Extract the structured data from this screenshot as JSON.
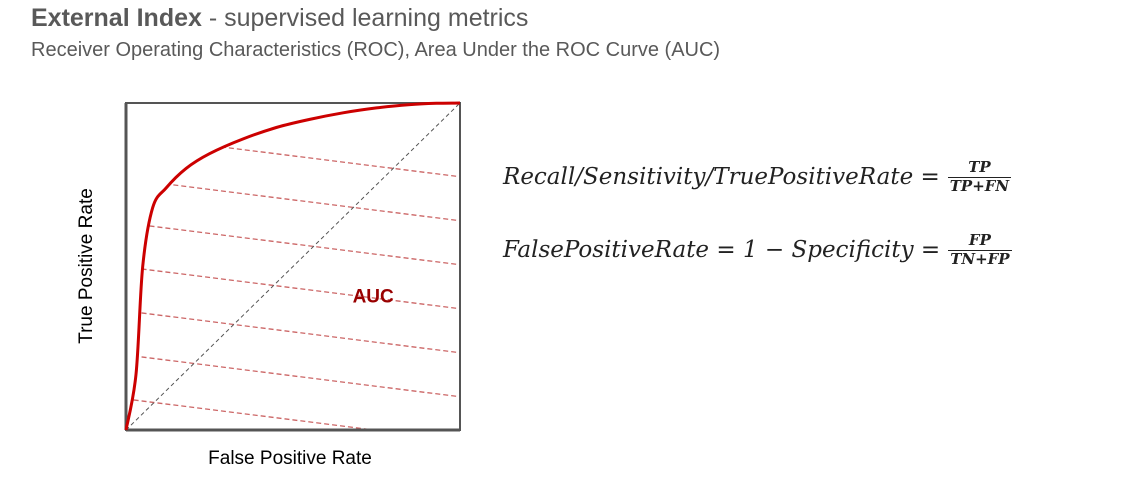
{
  "header": {
    "title_bold": "External Index",
    "title_rest": " - supervised learning metrics",
    "subtitle": "Receiver Operating Characteristics (ROC), Area Under the ROC Curve (AUC)"
  },
  "formulas": [
    {
      "lhs": "Recall/Sensitivity/TruePositiveRate =",
      "num": "TP",
      "den": "TP+FN"
    },
    {
      "lhs": "FalsePositiveRate = 1 − Specificity =",
      "num": "FP",
      "den": "TN+FP"
    }
  ],
  "chart_data": {
    "type": "line",
    "xlabel": "False Positive Rate",
    "ylabel": "True Positive Rate",
    "xlim": [
      0,
      1
    ],
    "ylim": [
      0,
      1
    ],
    "grid": false,
    "series": [
      {
        "x": [
          0,
          0.03,
          0.05,
          0.08,
          0.12,
          0.18,
          0.25,
          0.35,
          0.45,
          0.55,
          0.65,
          0.75,
          0.85,
          0.93,
          1
        ],
        "y": [
          0,
          0.17,
          0.5,
          0.68,
          0.74,
          0.8,
          0.845,
          0.89,
          0.925,
          0.95,
          0.97,
          0.985,
          0.995,
          0.999,
          1
        ],
        "color": "#cc0000"
      },
      {
        "x": [
          0,
          1
        ],
        "y": [
          0,
          1
        ],
        "color": "#555555",
        "style": "dashed"
      }
    ],
    "annotations": [
      {
        "text": "AUC",
        "x": 0.74,
        "y": 0.39,
        "color": "#990000"
      }
    ],
    "fill_hatch_color": "#cc6666"
  }
}
